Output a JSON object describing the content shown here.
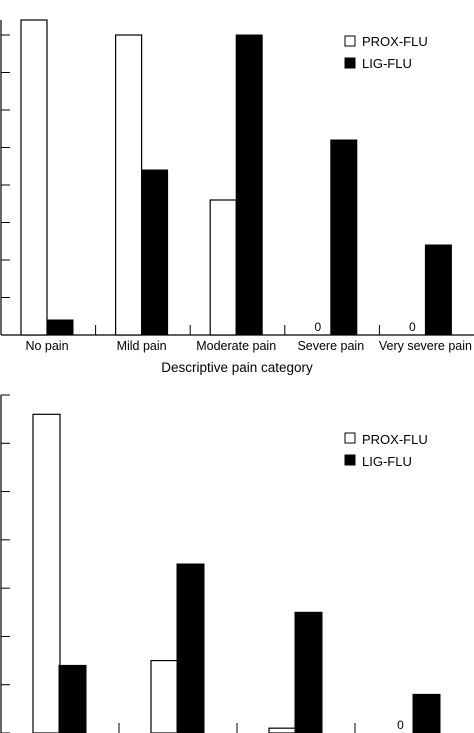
{
  "chart_data": [
    {
      "type": "bar",
      "categories": [
        "No pain",
        "Mild pain",
        "Moderate pain",
        "Severe pain",
        "Very severe pain"
      ],
      "series": [
        {
          "name": "PROX-FLU",
          "color": "#ffffff",
          "values": [
            84,
            80,
            36,
            0,
            0
          ]
        },
        {
          "name": "LIG-FLU",
          "color": "#000000",
          "values": [
            4,
            44,
            80,
            52,
            24
          ]
        }
      ],
      "zero_labels": [
        null,
        null,
        null,
        "0",
        "0"
      ],
      "xlabel": "Descriptive pain category",
      "ylim": [
        0,
        84
      ],
      "ytick_step": 10,
      "legend_position": "top-right",
      "grid": false
    },
    {
      "type": "bar",
      "categories": [
        "",
        "",
        "",
        ""
      ],
      "series": [
        {
          "name": "PROX-FLU",
          "color": "#ffffff",
          "values": [
            66,
            15,
            1,
            0
          ]
        },
        {
          "name": "LIG-FLU",
          "color": "#000000",
          "values": [
            14,
            35,
            25,
            8
          ]
        }
      ],
      "zero_labels": [
        null,
        null,
        null,
        "0"
      ],
      "ylim": [
        0,
        70
      ],
      "ytick_step": 10,
      "legend_position": "top-right",
      "grid": false
    }
  ]
}
